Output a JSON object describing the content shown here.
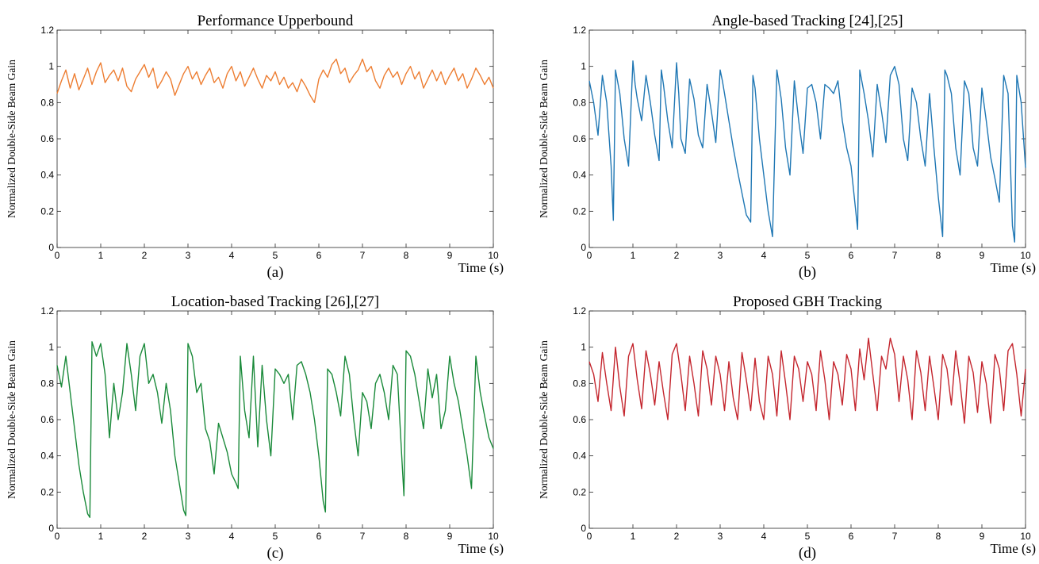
{
  "chart_data": [
    {
      "type": "line",
      "panel": "a",
      "title": "Performance Upperbound",
      "caption": "(a)",
      "xlabel": "Time (s)",
      "ylabel": "Normalized Double-Side Beam Gain",
      "xlim": [
        0,
        10
      ],
      "ylim": [
        0,
        1.2
      ],
      "xticks": [
        "0",
        "1",
        "2",
        "3",
        "4",
        "5",
        "6",
        "7",
        "8",
        "9",
        "10"
      ],
      "yticks": [
        "0",
        "0.2",
        "0.4",
        "0.6",
        "0.8",
        "1",
        "1.2"
      ],
      "grid": false,
      "color": "#ED7D31",
      "x": [
        0,
        0.1,
        0.2,
        0.3,
        0.4,
        0.5,
        0.6,
        0.7,
        0.8,
        0.9,
        1.0,
        1.1,
        1.2,
        1.3,
        1.4,
        1.5,
        1.6,
        1.7,
        1.8,
        1.9,
        2.0,
        2.1,
        2.2,
        2.3,
        2.4,
        2.5,
        2.6,
        2.7,
        2.8,
        2.9,
        3.0,
        3.1,
        3.2,
        3.3,
        3.4,
        3.5,
        3.6,
        3.7,
        3.8,
        3.9,
        4.0,
        4.1,
        4.2,
        4.3,
        4.4,
        4.5,
        4.6,
        4.7,
        4.8,
        4.9,
        5.0,
        5.1,
        5.2,
        5.3,
        5.4,
        5.5,
        5.6,
        5.7,
        5.8,
        5.9,
        6.0,
        6.1,
        6.2,
        6.3,
        6.4,
        6.5,
        6.6,
        6.7,
        6.8,
        6.9,
        7.0,
        7.1,
        7.2,
        7.3,
        7.4,
        7.5,
        7.6,
        7.7,
        7.8,
        7.9,
        8.0,
        8.1,
        8.2,
        8.3,
        8.4,
        8.5,
        8.6,
        8.7,
        8.8,
        8.9,
        9.0,
        9.1,
        9.2,
        9.3,
        9.4,
        9.5,
        9.6,
        9.7,
        9.8,
        9.9,
        10.0
      ],
      "y": [
        0.85,
        0.92,
        0.98,
        0.88,
        0.96,
        0.87,
        0.93,
        0.99,
        0.9,
        0.97,
        1.02,
        0.91,
        0.95,
        0.98,
        0.92,
        0.99,
        0.89,
        0.86,
        0.93,
        0.97,
        1.01,
        0.94,
        0.99,
        0.88,
        0.92,
        0.97,
        0.93,
        0.84,
        0.9,
        0.96,
        1.0,
        0.93,
        0.97,
        0.9,
        0.95,
        0.99,
        0.91,
        0.94,
        0.88,
        0.96,
        1.0,
        0.92,
        0.97,
        0.89,
        0.94,
        0.99,
        0.93,
        0.88,
        0.95,
        0.92,
        0.97,
        0.9,
        0.94,
        0.88,
        0.91,
        0.86,
        0.93,
        0.89,
        0.84,
        0.8,
        0.93,
        0.98,
        0.94,
        1.01,
        1.04,
        0.96,
        0.99,
        0.91,
        0.95,
        0.98,
        1.04,
        0.97,
        1.0,
        0.92,
        0.88,
        0.95,
        0.99,
        0.94,
        0.97,
        0.9,
        0.96,
        1.0,
        0.93,
        0.97,
        0.88,
        0.93,
        0.98,
        0.92,
        0.97,
        0.9,
        0.95,
        0.99,
        0.92,
        0.96,
        0.88,
        0.93,
        0.99,
        0.95,
        0.9,
        0.94,
        0.88
      ]
    },
    {
      "type": "line",
      "panel": "b",
      "title": "Angle-based Tracking [24],[25]",
      "caption": "(b)",
      "xlabel": "Time (s)",
      "ylabel": "Normalized Double-Side Beam Gain",
      "xlim": [
        0,
        10
      ],
      "ylim": [
        0,
        1.2
      ],
      "xticks": [
        "0",
        "1",
        "2",
        "3",
        "4",
        "5",
        "6",
        "7",
        "8",
        "9",
        "10"
      ],
      "yticks": [
        "0",
        "0.2",
        "0.4",
        "0.6",
        "0.8",
        "1",
        "1.2"
      ],
      "grid": false,
      "color": "#1F77B4",
      "x": [
        0,
        0.1,
        0.2,
        0.3,
        0.4,
        0.5,
        0.55,
        0.6,
        0.7,
        0.8,
        0.9,
        1.0,
        1.05,
        1.1,
        1.2,
        1.3,
        1.4,
        1.5,
        1.6,
        1.65,
        1.7,
        1.8,
        1.9,
        2.0,
        2.05,
        2.1,
        2.2,
        2.3,
        2.4,
        2.5,
        2.6,
        2.7,
        2.8,
        2.9,
        3.0,
        3.05,
        3.1,
        3.2,
        3.3,
        3.4,
        3.5,
        3.6,
        3.7,
        3.75,
        3.8,
        3.9,
        4.0,
        4.1,
        4.2,
        4.3,
        4.35,
        4.4,
        4.5,
        4.6,
        4.7,
        4.8,
        4.9,
        5.0,
        5.1,
        5.2,
        5.3,
        5.4,
        5.5,
        5.6,
        5.7,
        5.8,
        5.9,
        6.0,
        6.1,
        6.15,
        6.2,
        6.3,
        6.4,
        6.5,
        6.6,
        6.7,
        6.8,
        6.9,
        7.0,
        7.1,
        7.2,
        7.3,
        7.4,
        7.5,
        7.6,
        7.7,
        7.8,
        7.9,
        8.0,
        8.1,
        8.15,
        8.2,
        8.3,
        8.4,
        8.5,
        8.6,
        8.7,
        8.8,
        8.9,
        9.0,
        9.1,
        9.2,
        9.3,
        9.4,
        9.5,
        9.6,
        9.7,
        9.75,
        9.8,
        9.9,
        10.0
      ],
      "y": [
        0.92,
        0.8,
        0.62,
        0.95,
        0.8,
        0.45,
        0.15,
        0.98,
        0.85,
        0.6,
        0.45,
        1.03,
        0.9,
        0.82,
        0.7,
        0.95,
        0.8,
        0.62,
        0.48,
        0.98,
        0.9,
        0.7,
        0.55,
        1.02,
        0.85,
        0.6,
        0.52,
        0.93,
        0.82,
        0.62,
        0.55,
        0.9,
        0.75,
        0.58,
        0.98,
        0.92,
        0.85,
        0.7,
        0.55,
        0.42,
        0.3,
        0.18,
        0.14,
        0.95,
        0.88,
        0.6,
        0.4,
        0.2,
        0.06,
        0.98,
        0.9,
        0.82,
        0.55,
        0.4,
        0.92,
        0.7,
        0.52,
        0.88,
        0.9,
        0.8,
        0.6,
        0.9,
        0.88,
        0.85,
        0.92,
        0.7,
        0.55,
        0.45,
        0.22,
        0.1,
        0.98,
        0.85,
        0.7,
        0.5,
        0.9,
        0.75,
        0.58,
        0.95,
        1.0,
        0.9,
        0.6,
        0.48,
        0.88,
        0.8,
        0.6,
        0.45,
        0.85,
        0.55,
        0.28,
        0.06,
        0.98,
        0.95,
        0.85,
        0.55,
        0.4,
        0.92,
        0.85,
        0.55,
        0.45,
        0.88,
        0.7,
        0.5,
        0.38,
        0.25,
        0.95,
        0.85,
        0.12,
        0.03,
        0.95,
        0.8,
        0.44
      ]
    },
    {
      "type": "line",
      "panel": "c",
      "title": "Location-based Tracking [26],[27]",
      "caption": "(c)",
      "xlabel": "Time (s)",
      "ylabel": "Normalized Double-Side Beam Gain",
      "xlim": [
        0,
        10
      ],
      "ylim": [
        0,
        1.2
      ],
      "xticks": [
        "0",
        "1",
        "2",
        "3",
        "4",
        "5",
        "6",
        "7",
        "8",
        "9",
        "10"
      ],
      "yticks": [
        "0",
        "0.2",
        "0.4",
        "0.6",
        "0.8",
        "1",
        "1.2"
      ],
      "grid": false,
      "color": "#1A8A3A",
      "x": [
        0,
        0.1,
        0.2,
        0.3,
        0.4,
        0.5,
        0.6,
        0.7,
        0.75,
        0.8,
        0.9,
        1.0,
        1.1,
        1.2,
        1.3,
        1.4,
        1.5,
        1.6,
        1.7,
        1.8,
        1.9,
        2.0,
        2.1,
        2.2,
        2.3,
        2.4,
        2.5,
        2.6,
        2.7,
        2.8,
        2.9,
        2.95,
        3.0,
        3.1,
        3.2,
        3.3,
        3.4,
        3.5,
        3.6,
        3.7,
        3.8,
        3.9,
        4.0,
        4.1,
        4.15,
        4.2,
        4.3,
        4.4,
        4.5,
        4.6,
        4.7,
        4.8,
        4.9,
        5.0,
        5.1,
        5.2,
        5.3,
        5.4,
        5.5,
        5.6,
        5.7,
        5.8,
        5.9,
        6.0,
        6.1,
        6.15,
        6.2,
        6.3,
        6.4,
        6.5,
        6.6,
        6.7,
        6.8,
        6.9,
        7.0,
        7.1,
        7.2,
        7.3,
        7.4,
        7.5,
        7.6,
        7.7,
        7.8,
        7.9,
        7.95,
        8.0,
        8.1,
        8.2,
        8.3,
        8.4,
        8.5,
        8.6,
        8.7,
        8.8,
        8.9,
        9.0,
        9.1,
        9.2,
        9.3,
        9.4,
        9.5,
        9.6,
        9.7,
        9.8,
        9.9,
        10.0
      ],
      "y": [
        0.9,
        0.78,
        0.95,
        0.75,
        0.55,
        0.35,
        0.2,
        0.08,
        0.06,
        1.03,
        0.95,
        1.02,
        0.85,
        0.5,
        0.8,
        0.6,
        0.75,
        1.02,
        0.85,
        0.65,
        0.95,
        1.02,
        0.8,
        0.85,
        0.75,
        0.58,
        0.8,
        0.65,
        0.4,
        0.25,
        0.1,
        0.07,
        1.02,
        0.95,
        0.75,
        0.8,
        0.55,
        0.48,
        0.3,
        0.58,
        0.5,
        0.42,
        0.3,
        0.25,
        0.22,
        0.95,
        0.65,
        0.5,
        0.95,
        0.45,
        0.9,
        0.6,
        0.4,
        0.88,
        0.85,
        0.8,
        0.85,
        0.6,
        0.9,
        0.92,
        0.85,
        0.75,
        0.6,
        0.4,
        0.15,
        0.09,
        0.88,
        0.85,
        0.75,
        0.62,
        0.95,
        0.85,
        0.6,
        0.4,
        0.75,
        0.7,
        0.55,
        0.8,
        0.85,
        0.75,
        0.6,
        0.9,
        0.85,
        0.4,
        0.18,
        0.98,
        0.95,
        0.85,
        0.7,
        0.55,
        0.88,
        0.72,
        0.85,
        0.55,
        0.65,
        0.95,
        0.8,
        0.7,
        0.55,
        0.4,
        0.22,
        0.95,
        0.75,
        0.62,
        0.5,
        0.44
      ]
    },
    {
      "type": "line",
      "panel": "d",
      "title": "Proposed GBH Tracking",
      "caption": "(d)",
      "xlabel": "Time (s)",
      "ylabel": "Normalized Double-Side Beam Gain",
      "xlim": [
        0,
        10
      ],
      "ylim": [
        0,
        1.2
      ],
      "xticks": [
        "0",
        "1",
        "2",
        "3",
        "4",
        "5",
        "6",
        "7",
        "8",
        "9",
        "10"
      ],
      "yticks": [
        "0",
        "0.2",
        "0.4",
        "0.6",
        "0.8",
        "1",
        "1.2"
      ],
      "grid": false,
      "color": "#C4262E",
      "x": [
        0,
        0.1,
        0.2,
        0.3,
        0.4,
        0.5,
        0.6,
        0.7,
        0.8,
        0.9,
        1.0,
        1.1,
        1.2,
        1.3,
        1.4,
        1.5,
        1.6,
        1.7,
        1.8,
        1.9,
        2.0,
        2.1,
        2.2,
        2.3,
        2.4,
        2.5,
        2.6,
        2.7,
        2.8,
        2.9,
        3.0,
        3.1,
        3.2,
        3.3,
        3.4,
        3.5,
        3.6,
        3.7,
        3.8,
        3.9,
        4.0,
        4.1,
        4.2,
        4.3,
        4.4,
        4.5,
        4.6,
        4.7,
        4.8,
        4.9,
        5.0,
        5.1,
        5.2,
        5.3,
        5.4,
        5.5,
        5.6,
        5.7,
        5.8,
        5.9,
        6.0,
        6.1,
        6.2,
        6.3,
        6.4,
        6.5,
        6.6,
        6.7,
        6.8,
        6.9,
        7.0,
        7.1,
        7.2,
        7.3,
        7.4,
        7.5,
        7.6,
        7.7,
        7.8,
        7.9,
        8.0,
        8.1,
        8.2,
        8.3,
        8.4,
        8.5,
        8.6,
        8.7,
        8.8,
        8.9,
        9.0,
        9.1,
        9.2,
        9.3,
        9.4,
        9.5,
        9.6,
        9.7,
        9.8,
        9.9,
        10.0
      ],
      "y": [
        0.92,
        0.85,
        0.7,
        0.97,
        0.8,
        0.65,
        1.0,
        0.78,
        0.62,
        0.95,
        1.02,
        0.82,
        0.66,
        0.98,
        0.85,
        0.68,
        0.92,
        0.75,
        0.6,
        0.96,
        1.02,
        0.85,
        0.65,
        0.95,
        0.8,
        0.62,
        0.98,
        0.88,
        0.68,
        0.95,
        0.85,
        0.65,
        0.92,
        0.72,
        0.6,
        0.97,
        0.82,
        0.65,
        0.94,
        0.7,
        0.6,
        0.95,
        0.85,
        0.62,
        0.98,
        0.8,
        0.6,
        0.95,
        0.88,
        0.7,
        0.92,
        0.85,
        0.65,
        0.98,
        0.82,
        0.6,
        0.92,
        0.85,
        0.68,
        0.96,
        0.88,
        0.65,
        0.99,
        0.82,
        1.05,
        0.85,
        0.65,
        0.95,
        0.88,
        1.05,
        0.96,
        0.7,
        0.95,
        0.82,
        0.6,
        0.98,
        0.86,
        0.65,
        0.95,
        0.78,
        0.6,
        0.96,
        0.88,
        0.68,
        0.98,
        0.8,
        0.58,
        0.95,
        0.86,
        0.64,
        0.92,
        0.8,
        0.58,
        0.96,
        0.88,
        0.65,
        0.98,
        1.02,
        0.85,
        0.62,
        0.88
      ]
    }
  ]
}
